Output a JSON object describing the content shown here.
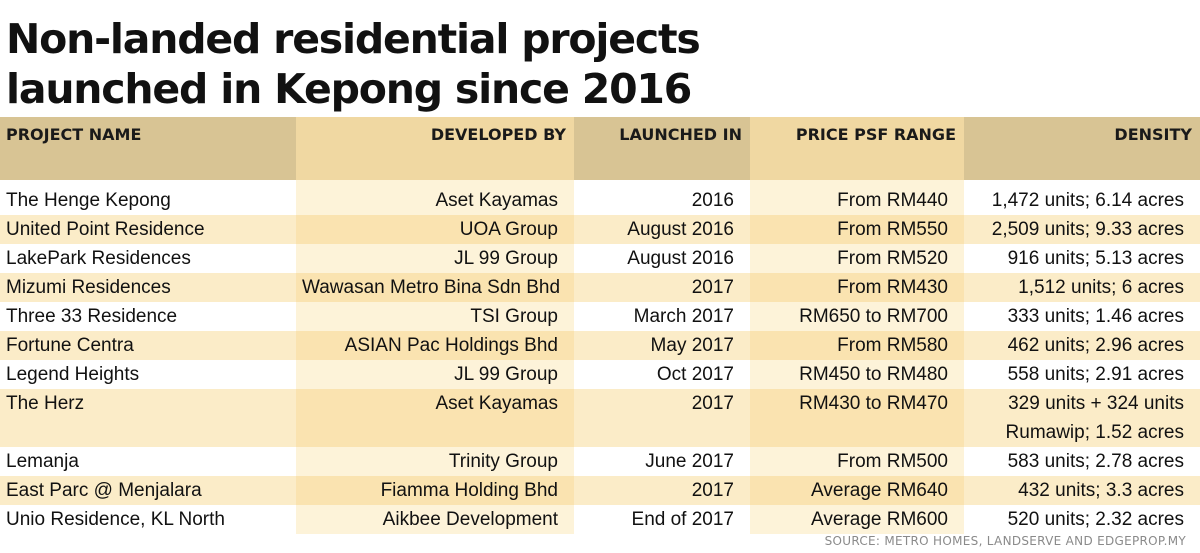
{
  "chart_data": {
    "type": "table",
    "title_lines": [
      "Non-landed residential projects",
      "launched in Kepong since 2016"
    ],
    "columns": [
      "PROJECT NAME",
      "DEVELOPED BY",
      "LAUNCHED IN",
      "PRICE PSF RANGE",
      "DENSITY"
    ],
    "rows": [
      {
        "project": "The Henge Kepong",
        "developer": "Aset Kayamas",
        "launched": "2016",
        "price": "From RM440",
        "density": "1,472 units; 6.14 acres"
      },
      {
        "project": "United Point Residence",
        "developer": "UOA Group",
        "launched": "August 2016",
        "price": "From RM550",
        "density": "2,509 units; 9.33 acres"
      },
      {
        "project": "LakePark Residences",
        "developer": "JL 99 Group",
        "launched": "August 2016",
        "price": "From RM520",
        "density": "916 units; 5.13 acres"
      },
      {
        "project": "Mizumi Residences",
        "developer": "Wawasan Metro Bina Sdn Bhd",
        "launched": "2017",
        "price": "From RM430",
        "density": "1,512 units; 6 acres"
      },
      {
        "project": "Three 33 Residence",
        "developer": "TSI Group",
        "launched": "March 2017",
        "price": "RM650 to RM700",
        "density": "333 units; 1.46 acres"
      },
      {
        "project": "Fortune Centra",
        "developer": "ASIAN Pac Holdings Bhd",
        "launched": "May 2017",
        "price": "From RM580",
        "density": "462 units; 2.96 acres"
      },
      {
        "project": "Legend Heights",
        "developer": "JL 99 Group",
        "launched": "Oct 2017",
        "price": "RM450 to RM480",
        "density": "558 units; 2.91 acres"
      },
      {
        "project": "The Herz",
        "developer": "Aset Kayamas",
        "launched": "2017",
        "price": "RM430 to RM470",
        "density": "329 units + 324 units",
        "density_line2": "Rumawip; 1.52 acres"
      },
      {
        "project": "Lemanja",
        "developer": "Trinity Group",
        "launched": "June 2017",
        "price": "From RM500",
        "density": "583 units; 2.78 acres"
      },
      {
        "project": "East Parc @ Menjalara",
        "developer": "Fiamma Holding Bhd",
        "launched": "2017",
        "price": "Average RM640",
        "density": "432 units; 3.3 acres"
      },
      {
        "project": "Unio Residence, KL North",
        "developer": "Aikbee Development",
        "launched": "End of 2017",
        "price": "Average RM600",
        "density": "520 units; 2.32 acres"
      }
    ],
    "source": "SOURCE: METRO HOMES, LANDSERVE AND EDGEPROP.MY"
  }
}
